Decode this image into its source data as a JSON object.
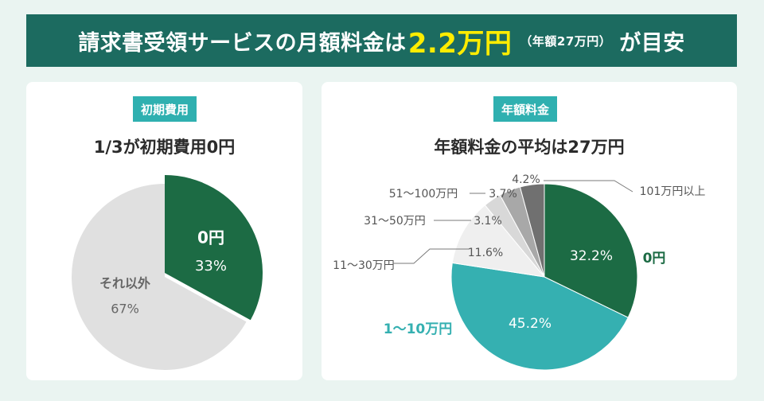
{
  "banner": {
    "prefix": "請求書受領サービスの月額料金は",
    "amount": "2.2万円",
    "sub": "（年額27万円）",
    "suffix": "が目安"
  },
  "left_card": {
    "tag": "初期費用",
    "subtitle": "1/3が初期費用0円"
  },
  "right_card": {
    "tag": "年額料金",
    "subtitle": "年額料金の平均は27万円"
  },
  "colors": {
    "banner_bg": "#1c6b60",
    "highlight": "#ffec00",
    "tag_bg": "#2fb0b0",
    "dark_green": "#1c6b44",
    "light_gray": "#e0e0e0",
    "teal": "#35b0b1"
  },
  "chart_data": [
    {
      "type": "pie",
      "title": "1/3が初期費用0円",
      "slices": [
        {
          "label": "0円",
          "value": 33,
          "value_label": "33%",
          "color": "#1c6b44"
        },
        {
          "label": "それ以外",
          "value": 67,
          "value_label": "67%",
          "color": "#e0e0e0"
        }
      ]
    },
    {
      "type": "pie",
      "title": "年額料金の平均は27万円",
      "slices": [
        {
          "label": "0円",
          "value": 32.2,
          "value_label": "32.2%",
          "color": "#1c6b44"
        },
        {
          "label": "1～10万円",
          "value": 45.2,
          "value_label": "45.2%",
          "color": "#35b0b1"
        },
        {
          "label": "11～30万円",
          "value": 11.6,
          "value_label": "11.6%",
          "color": "#efefef"
        },
        {
          "label": "31～50万円",
          "value": 3.1,
          "value_label": "3.1%",
          "color": "#d8d8d8"
        },
        {
          "label": "51～100万円",
          "value": 3.7,
          "value_label": "3.7%",
          "color": "#a8a8a8"
        },
        {
          "label": "101万円以上",
          "value": 4.2,
          "value_label": "4.2%",
          "color": "#707070"
        }
      ]
    }
  ]
}
